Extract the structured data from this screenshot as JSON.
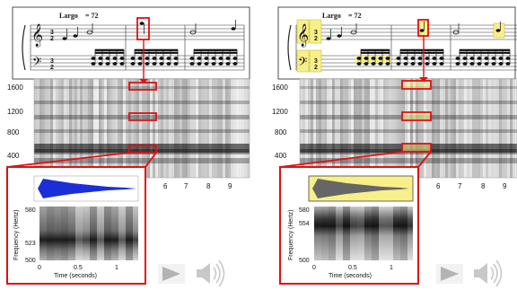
{
  "left": {
    "tempo_label": "Largo",
    "tempo_value": "= 72",
    "y_ticks": [
      "1600",
      "1200",
      "800",
      "400"
    ],
    "x_ticks": [
      "6",
      "7",
      "8",
      "9"
    ],
    "inset": {
      "freq_ticks": [
        "580",
        "523",
        "500"
      ],
      "time_ticks": [
        "0",
        "0.5",
        "1"
      ],
      "ylabel": "Frequency (Hertz)",
      "xlabel": "Time (seconds)"
    }
  },
  "right": {
    "tempo_label": "Largo",
    "tempo_value": "= 72",
    "y_ticks": [
      "1600",
      "1200",
      "800",
      "400"
    ],
    "x_ticks": [
      "6",
      "7",
      "8",
      "9"
    ],
    "inset": {
      "freq_ticks": [
        "580",
        "554",
        "500"
      ],
      "time_ticks": [
        "0",
        "0.5",
        "1"
      ],
      "ylabel": "Frequency (Hertz)",
      "xlabel": "Time (seconds)"
    }
  },
  "colors": {
    "highlight_red": "#e01010",
    "highlight_yellow": "#f7f08a",
    "waveform_blue": "#1a2fd8"
  },
  "icons": [
    "play-icon",
    "speaker-icon"
  ]
}
